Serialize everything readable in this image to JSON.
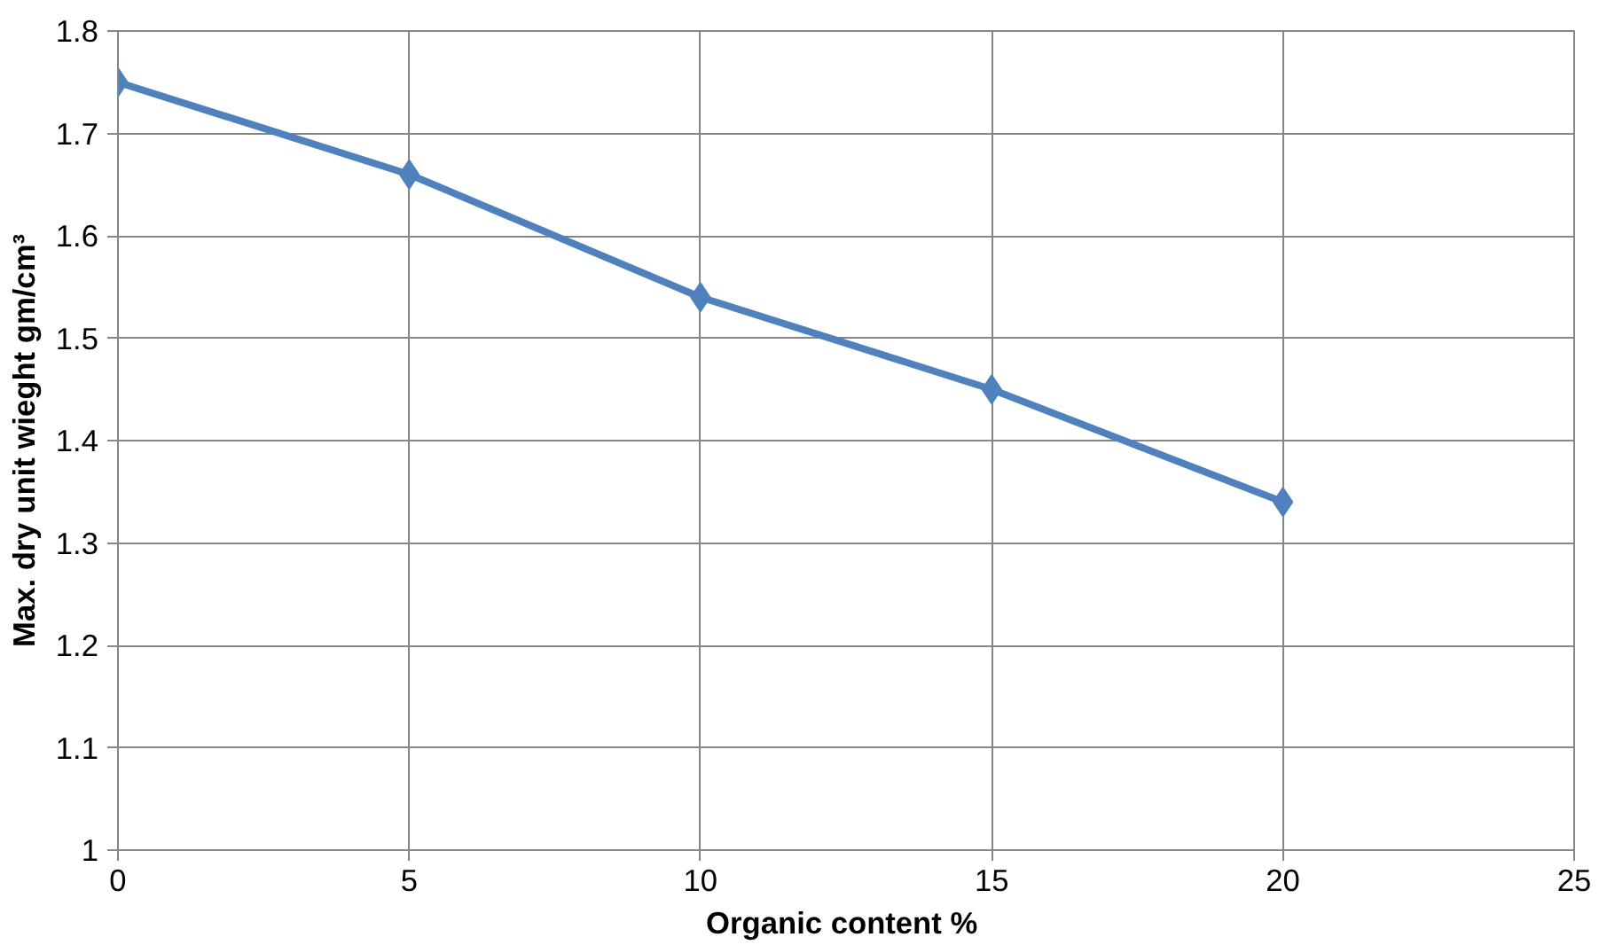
{
  "chart_data": {
    "type": "line",
    "xlabel": "Organic content  %",
    "ylabel": "Max. dry unit wieght gm/cm³",
    "x": [
      0,
      5,
      10,
      15,
      20
    ],
    "series": [
      {
        "color": "#4f81bd",
        "values": [
          1.75,
          1.66,
          1.54,
          1.45,
          1.34
        ]
      }
    ],
    "xlim": [
      0,
      25
    ],
    "xticks": [
      0,
      5,
      10,
      15,
      20,
      25
    ],
    "ylim": [
      1,
      1.8
    ],
    "yticks": [
      1,
      1.1,
      1.2,
      1.3,
      1.4,
      1.5,
      1.6,
      1.7,
      1.8
    ],
    "grid": true,
    "marker": "diamond",
    "line_style": "solid"
  }
}
